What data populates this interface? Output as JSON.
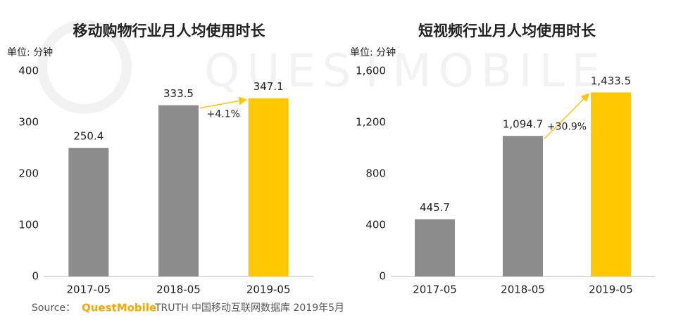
{
  "watermark": "QUESTMOBILE",
  "chart_data": [
    {
      "type": "bar",
      "title": "移动购物行业月人均使用时长",
      "unit_label": "单位: 分钟",
      "categories": [
        "2017-05",
        "2018-05",
        "2019-05"
      ],
      "values": [
        250.4,
        333.5,
        347.1
      ],
      "colors": [
        "#8c8c8c",
        "#8c8c8c",
        "#ffc800"
      ],
      "ylim": [
        0,
        400
      ],
      "yticks": [
        0,
        100,
        200,
        300,
        400
      ],
      "annotation": "+4.1%"
    },
    {
      "type": "bar",
      "title": "短视频行业月人均使用时长",
      "unit_label": "单位: 分钟",
      "categories": [
        "2017-05",
        "2018-05",
        "2019-05"
      ],
      "values": [
        445.7,
        1094.7,
        1433.5
      ],
      "value_labels": [
        "445.7",
        "1,094.7",
        "1,433.5"
      ],
      "colors": [
        "#8c8c8c",
        "#8c8c8c",
        "#ffc800"
      ],
      "ylim": [
        0,
        1600
      ],
      "yticks": [
        0,
        400,
        800,
        {
          "value": 1200,
          "label": "1,200"
        },
        {
          "value": 1600,
          "label": "1,600"
        }
      ],
      "annotation": "+30.9%"
    }
  ],
  "source": {
    "label": "Source：",
    "brand": "QuestMobile",
    "text": "TRUTH 中国移动互联网数据库 2019年5月"
  }
}
